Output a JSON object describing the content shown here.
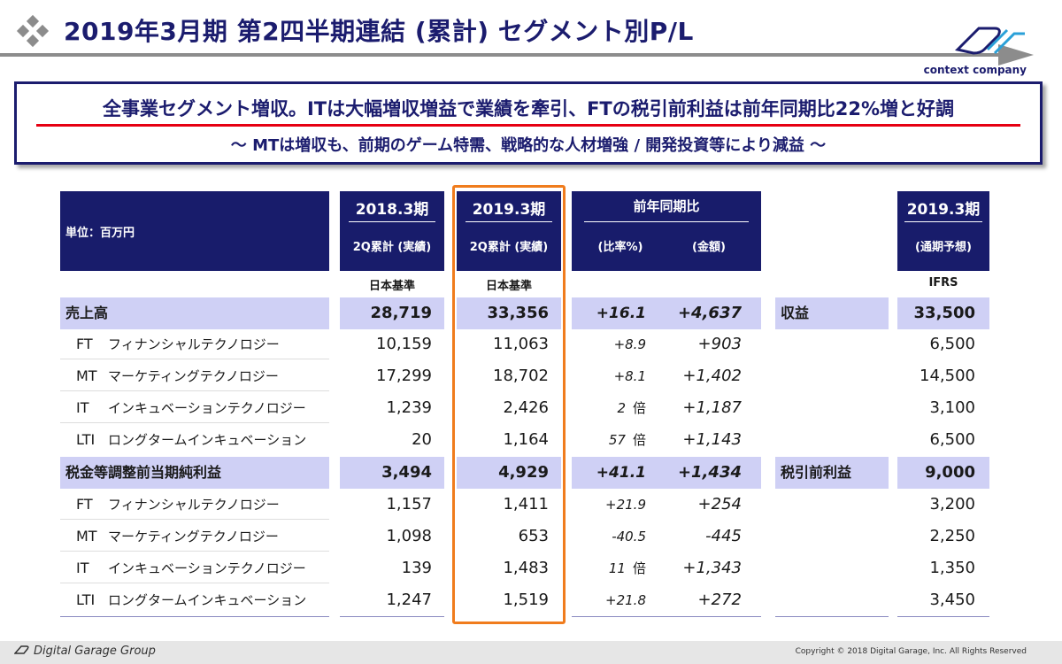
{
  "header": {
    "title": "2019年3月期 第2四半期連結 (累計) セグメント別P/L",
    "logo_text": "context company"
  },
  "summary": {
    "main": "全事業セグメント増収。ITは大幅増収増益で業績を牽引、FTの税引前利益は前年同期比22%増と好調",
    "sub": "〜 MTは増収も、前期のゲーム特需、戦略的な人材増強 / 開発投資等により減益 〜"
  },
  "table": {
    "unit_label": "単位：百万円",
    "col_2018_top": "2018.3期",
    "col_2018_sub": "2Q累計 (実績)",
    "col_2019_top": "2019.3期",
    "col_2019_sub": "2Q累計 (実績)",
    "col_yoy_top": "前年同期比",
    "col_yoy_ratio": "(比率%)",
    "col_yoy_amount": "(金額)",
    "col_fc_top": "2019.3期",
    "col_fc_sub": "(通期予想)",
    "note_2018": "日本基準",
    "note_2019": "日本基準",
    "note_fc": "IFRS",
    "rows": [
      {
        "label": "売上高",
        "v2018": "28,719",
        "v2019": "33,356",
        "ratio": "+16.1",
        "ratio_suffix": "",
        "amount": "+4,637",
        "fc_label": "収益",
        "fc": "33,500"
      },
      {
        "code": "FT",
        "label": "フィナンシャルテクノロジー",
        "v2018": "10,159",
        "v2019": "11,063",
        "ratio": "+8.9",
        "ratio_suffix": "",
        "amount": "+903",
        "fc": "6,500"
      },
      {
        "code": "MT",
        "label": "マーケティングテクノロジー",
        "v2018": "17,299",
        "v2019": "18,702",
        "ratio": "+8.1",
        "ratio_suffix": "",
        "amount": "+1,402",
        "fc": "14,500"
      },
      {
        "code": "IT",
        "label": "インキュベーションテクノロジー",
        "v2018": "1,239",
        "v2019": "2,426",
        "ratio": "2",
        "ratio_suffix": "倍",
        "amount": "+1,187",
        "fc": "3,100"
      },
      {
        "code": "LTI",
        "label": "ロングタームインキュベーション",
        "v2018": "20",
        "v2019": "1,164",
        "ratio": "57",
        "ratio_suffix": "倍",
        "amount": "+1,143",
        "fc": "6,500"
      },
      {
        "label": "税金等調整前当期純利益",
        "v2018": "3,494",
        "v2019": "4,929",
        "ratio": "+41.1",
        "ratio_suffix": "",
        "amount": "+1,434",
        "fc_label": "税引前利益",
        "fc": "9,000"
      },
      {
        "code": "FT",
        "label": "フィナンシャルテクノロジー",
        "v2018": "1,157",
        "v2019": "1,411",
        "ratio": "+21.9",
        "ratio_suffix": "",
        "amount": "+254",
        "fc": "3,200"
      },
      {
        "code": "MT",
        "label": "マーケティングテクノロジー",
        "v2018": "1,098",
        "v2019": "653",
        "ratio": "-40.5",
        "ratio_suffix": "",
        "amount": "-445",
        "fc": "2,250"
      },
      {
        "code": "IT",
        "label": "インキュベーションテクノロジー",
        "v2018": "139",
        "v2019": "1,483",
        "ratio": "11",
        "ratio_suffix": "倍",
        "amount": "+1,343",
        "fc": "1,350"
      },
      {
        "code": "LTI",
        "label": "ロングタームインキュベーション",
        "v2018": "1,247",
        "v2019": "1,519",
        "ratio": "+21.8",
        "ratio_suffix": "",
        "amount": "+272",
        "fc": "3,450"
      }
    ]
  },
  "footer": {
    "company": "Digital Garage Group",
    "copyright": "Copyright © 2018 Digital Garage, Inc. All Rights Reserved"
  },
  "colors": {
    "navy": "#181c6b",
    "band": "#cfd0f5",
    "highlight": "#f07c1d",
    "red_line": "#e60012"
  }
}
